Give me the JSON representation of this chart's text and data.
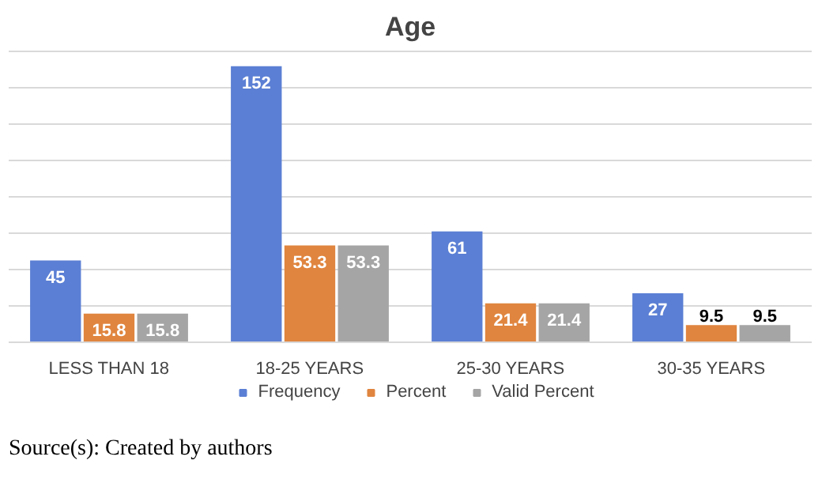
{
  "chart_data": {
    "type": "bar",
    "title": "Age",
    "categories": [
      "LESS THAN 18",
      "18-25 YEARS",
      "25-30 YEARS",
      "30-35 YEARS"
    ],
    "series": [
      {
        "name": "Frequency",
        "color": "#5b7fd4",
        "values": [
          45,
          152,
          61,
          27
        ]
      },
      {
        "name": "Percent",
        "color": "#e0853f",
        "values": [
          15.8,
          53.3,
          21.4,
          9.5
        ]
      },
      {
        "name": "Valid Percent",
        "color": "#a5a5a5",
        "values": [
          15.8,
          53.3,
          21.4,
          9.5
        ]
      }
    ],
    "yticks": [
      {
        "value": 0,
        "label": null
      },
      {
        "value": 20,
        "label": null
      },
      {
        "value": 40,
        "label": null
      },
      {
        "value": 60,
        "label": null
      },
      {
        "value": 80,
        "label": null
      },
      {
        "value": 100,
        "label": null
      },
      {
        "value": 120,
        "label": null
      },
      {
        "value": 140,
        "label": null
      },
      {
        "value": 160,
        "label": null
      }
    ],
    "tick_labels": "x",
    "grid": "y",
    "legend": "bottom",
    "data_labels": true,
    "annotations": [
      "Source(s): Created by authors"
    ]
  }
}
